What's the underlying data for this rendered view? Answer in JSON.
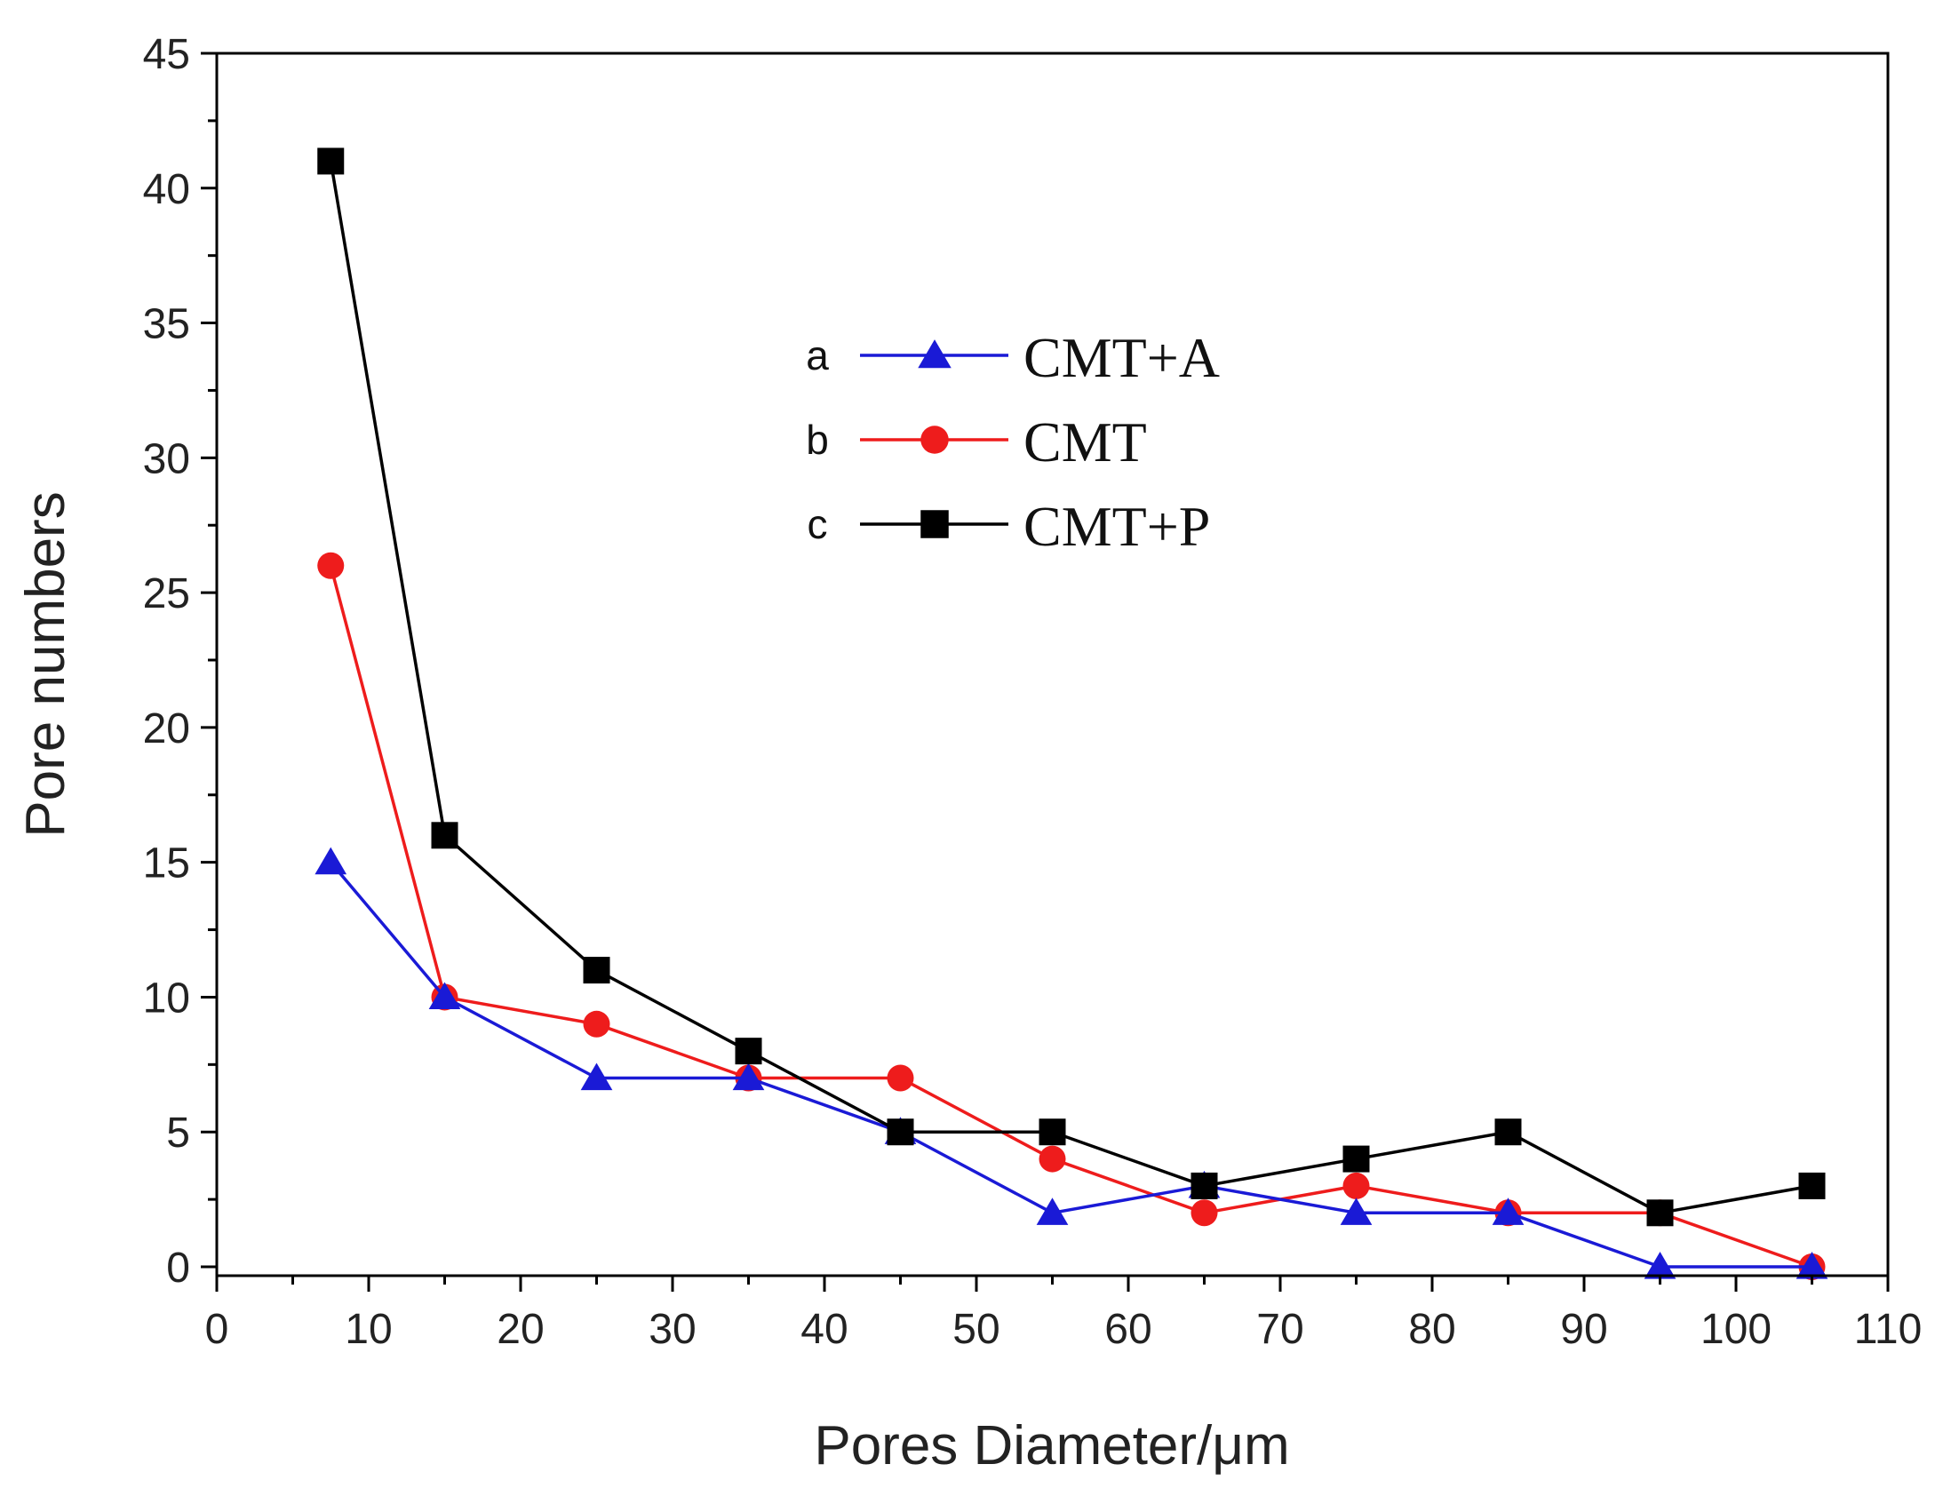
{
  "chart_data": {
    "type": "line",
    "title": "",
    "xlabel": "Pores Diameter/μm",
    "ylabel": "Pore numbers",
    "xlim": [
      0,
      110
    ],
    "ylim": [
      0,
      45
    ],
    "xticks": [
      0,
      10,
      20,
      30,
      40,
      50,
      60,
      70,
      80,
      90,
      100,
      110
    ],
    "yticks": [
      0,
      5,
      10,
      15,
      20,
      25,
      30,
      35,
      40,
      45
    ],
    "x": [
      7.5,
      15,
      25,
      35,
      45,
      55,
      65,
      75,
      85,
      95,
      105
    ],
    "grid": false,
    "legend_position": "top-center",
    "series": [
      {
        "letter": "a",
        "name": "CMT+A",
        "color": "#1a1ad6",
        "marker": "triangle",
        "values": [
          15,
          10,
          7,
          7,
          5,
          2,
          3,
          2,
          2,
          0,
          0
        ]
      },
      {
        "letter": "b",
        "name": "CMT",
        "color": "#ee1c1c",
        "marker": "circle",
        "values": [
          26,
          10,
          9,
          7,
          7,
          4,
          2,
          3,
          2,
          2,
          0
        ]
      },
      {
        "letter": "c",
        "name": "CMT+P",
        "color": "#000000",
        "marker": "square",
        "values": [
          41,
          16,
          11,
          8,
          5,
          5,
          3,
          4,
          5,
          2,
          3
        ]
      }
    ]
  }
}
